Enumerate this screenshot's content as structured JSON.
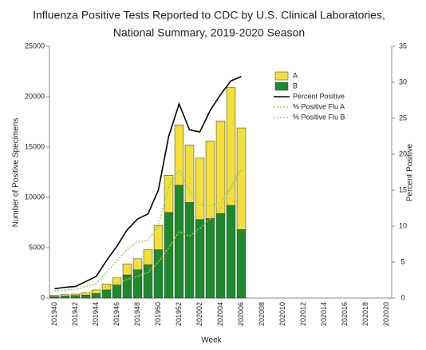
{
  "chart_data": {
    "type": "bar",
    "title": [
      "Influenza Positive Tests Reported to CDC by U.S. Clinical Laboratories,",
      "National Summary, 2019-2020 Season"
    ],
    "x_label": "Week",
    "y_label": "Number of Positive Specimens",
    "y2_label": "Percent Positive",
    "categories": [
      "201940",
      null,
      "201942",
      null,
      "201944",
      null,
      "201946",
      null,
      "201948",
      null,
      "201950",
      null,
      "201952",
      null,
      "202002",
      null,
      "202004",
      null,
      "202006",
      null,
      "202008",
      null,
      "202010",
      null,
      "202012",
      null,
      "202014",
      null,
      "202016",
      null,
      "202018",
      null,
      "202020"
    ],
    "series": [
      {
        "name": "A",
        "kind": "bar",
        "color": "#f2df3a",
        "values": [
          150,
          150,
          150,
          250,
          350,
          600,
          700,
          1100,
          1100,
          1500,
          2400,
          3700,
          6000,
          5700,
          6100,
          7700,
          9200,
          11700,
          10100,
          null,
          null,
          null,
          null,
          null,
          null,
          null,
          null,
          null,
          null,
          null,
          null,
          null,
          null
        ]
      },
      {
        "name": "B",
        "kind": "bar",
        "color": "#1e8a2e",
        "values": [
          150,
          200,
          250,
          300,
          450,
          800,
          1300,
          2300,
          2800,
          3300,
          4800,
          8500,
          11200,
          9500,
          7800,
          7900,
          8400,
          9200,
          6800,
          null,
          null,
          null,
          null,
          null,
          null,
          null,
          null,
          null,
          null,
          null,
          null,
          null,
          null
        ]
      },
      {
        "name": "Percent Positive",
        "kind": "line",
        "axis": "y2",
        "color": "#000000",
        "values": [
          1.3,
          1.5,
          1.6,
          2.3,
          3.0,
          5.2,
          7.2,
          9.5,
          11.0,
          11.7,
          15.0,
          22.5,
          27.0,
          23.4,
          23.1,
          26.1,
          28.3,
          30.2,
          30.8,
          null,
          null,
          null,
          null,
          null,
          null,
          null,
          null,
          null,
          null,
          null,
          null,
          null,
          null
        ]
      },
      {
        "name": "% Positive Flu A",
        "kind": "line",
        "axis": "y2",
        "dash": true,
        "color": "#c9c23a",
        "values": [
          0.3,
          0.4,
          0.5,
          0.7,
          1.0,
          1.6,
          2.0,
          2.6,
          3.0,
          3.6,
          5.0,
          7.0,
          9.2,
          8.6,
          9.7,
          11.0,
          12.5,
          15.4,
          17.8,
          null,
          null,
          null,
          null,
          null,
          null,
          null,
          null,
          null,
          null,
          null,
          null,
          null,
          null
        ]
      },
      {
        "name": "% Positive Flu B",
        "kind": "line",
        "axis": "y2",
        "dash": true,
        "color": "#8fd46b",
        "values": [
          1.0,
          1.1,
          1.2,
          1.6,
          2.0,
          3.6,
          5.2,
          6.8,
          7.8,
          8.0,
          10.0,
          15.5,
          17.8,
          14.8,
          13.0,
          12.8,
          13.2,
          15.6,
          17.9,
          null,
          null,
          null,
          null,
          null,
          null,
          null,
          null,
          null,
          null,
          null,
          null,
          null,
          null
        ]
      }
    ],
    "ylim": [
      0,
      25000
    ],
    "yticks": [
      0,
      5000,
      10000,
      15000,
      20000,
      25000
    ],
    "y2lim": [
      0,
      35
    ],
    "y2ticks": [
      0,
      5,
      10,
      15,
      20,
      25,
      30,
      35
    ],
    "legend": "upper-right",
    "grid": false
  }
}
